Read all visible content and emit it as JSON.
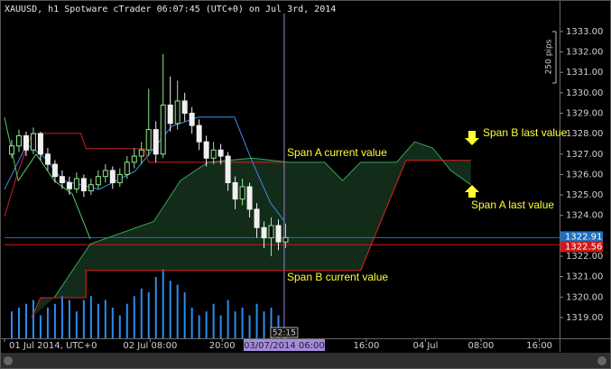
{
  "chart_data": {
    "type": "candlestick",
    "title": "XAUUSD, h1 Spotware cTrader 06:07:45 (UTC+0) on Jul 3rd, 2014",
    "x": [
      1,
      2,
      3,
      4,
      5,
      6,
      7,
      8,
      9,
      10,
      11,
      12,
      13,
      14,
      15,
      16,
      17,
      18,
      19,
      20,
      21,
      22,
      23,
      24,
      25,
      26,
      27,
      28,
      29,
      30,
      31,
      32,
      33,
      34,
      35,
      36,
      37,
      38,
      39
    ],
    "open": [
      1327.0,
      1327.4,
      1327.9,
      1327.2,
      1328.0,
      1327.0,
      1326.5,
      1325.9,
      1325.6,
      1325.3,
      1325.8,
      1325.2,
      1325.5,
      1325.9,
      1326.2,
      1325.6,
      1326.0,
      1326.6,
      1326.9,
      1327.2,
      1328.2,
      1327.0,
      1329.4,
      1328.5,
      1329.6,
      1329.0,
      1328.4,
      1327.6,
      1326.8,
      1327.2,
      1326.9,
      1325.6,
      1324.8,
      1325.4,
      1324.3,
      1323.4,
      1322.9,
      1323.5,
      1322.7
    ],
    "high": [
      1327.7,
      1328.2,
      1328.1,
      1328.3,
      1328.1,
      1327.3,
      1326.7,
      1326.2,
      1325.9,
      1326.1,
      1326.0,
      1325.8,
      1326.2,
      1326.5,
      1326.4,
      1326.3,
      1326.9,
      1327.3,
      1327.6,
      1330.2,
      1328.6,
      1331.9,
      1330.8,
      1330.6,
      1330.0,
      1329.3,
      1328.7,
      1327.9,
      1327.6,
      1327.5,
      1327.1,
      1325.9,
      1325.8,
      1325.6,
      1324.6,
      1323.7,
      1323.9,
      1323.8,
      1323.6
    ],
    "low": [
      1326.8,
      1327.1,
      1326.9,
      1327.0,
      1326.7,
      1326.2,
      1325.6,
      1325.3,
      1325.0,
      1325.1,
      1324.9,
      1325.0,
      1325.3,
      1325.6,
      1325.3,
      1325.4,
      1325.8,
      1326.3,
      1326.5,
      1326.9,
      1326.6,
      1326.8,
      1328.1,
      1328.2,
      1328.6,
      1328.0,
      1327.2,
      1326.4,
      1326.5,
      1326.5,
      1325.2,
      1324.3,
      1324.5,
      1323.9,
      1322.9,
      1322.4,
      1322.0,
      1322.3,
      1322.4
    ],
    "close": [
      1327.4,
      1327.9,
      1327.2,
      1328.0,
      1327.0,
      1326.5,
      1325.9,
      1325.6,
      1325.3,
      1325.8,
      1325.2,
      1325.5,
      1325.9,
      1326.2,
      1325.6,
      1326.0,
      1326.6,
      1326.9,
      1327.2,
      1328.2,
      1327.0,
      1329.4,
      1328.5,
      1329.6,
      1329.0,
      1328.4,
      1327.6,
      1326.8,
      1327.2,
      1326.9,
      1325.6,
      1324.8,
      1325.4,
      1324.3,
      1323.4,
      1322.9,
      1323.5,
      1322.7,
      1322.91
    ],
    "up_color": "#8fe88f",
    "down_color": "#f0f0f0",
    "volume": {
      "color": "#2a8cf0",
      "ylim": [
        0,
        100
      ],
      "values": [
        35,
        40,
        45,
        50,
        30,
        40,
        45,
        55,
        50,
        35,
        50,
        55,
        45,
        50,
        40,
        30,
        45,
        55,
        65,
        60,
        80,
        90,
        75,
        70,
        60,
        40,
        30,
        35,
        45,
        30,
        50,
        35,
        40,
        30,
        45,
        35,
        40,
        30,
        10
      ]
    },
    "lines": [
      {
        "color": "#3b8ee8",
        "x": [
          0,
          3.1,
          5.6,
          8.1,
          13.1,
          18.1,
          23.2,
          26.9,
          31.9,
          34.4,
          36.9,
          38.8
        ],
        "values": [
          1325.27,
          1327.48,
          1326.82,
          1325.71,
          1325.27,
          1326.16,
          1328.36,
          1328.81,
          1328.81,
          1326.6,
          1324.61,
          1323.73
        ]
      },
      {
        "color": "#c8222a",
        "x": [
          0,
          1.9,
          3.8,
          10.6,
          11.3,
          19.4,
          20.0,
          38.8
        ],
        "values": [
          1323.95,
          1326.16,
          1328.01,
          1328.01,
          1327.26,
          1327.26,
          1326.6,
          1326.6
        ]
      },
      {
        "color": "#3aa55a",
        "x": [
          6.9,
          11.9,
          20.7,
          24.4,
          28.2,
          34.4,
          39.4,
          44.4,
          46.9,
          49.4,
          54.4,
          56.9,
          59.4,
          61.9,
          64.7
        ],
        "values": [
          1319.97,
          1322.6,
          1323.7,
          1325.7,
          1326.6,
          1326.8,
          1326.6,
          1326.6,
          1325.7,
          1326.6,
          1326.6,
          1327.6,
          1327.3,
          1326.2,
          1325.5
        ]
      },
      {
        "color": "#e02020",
        "x": [
          3.75,
          5.0,
          11.3,
          11.3,
          49.4,
          55.7,
          64.7
        ],
        "values": [
          1319.0,
          1319.97,
          1319.97,
          1321.3,
          1321.3,
          1326.69,
          1326.69
        ]
      },
      {
        "color": "#55c865",
        "x": [
          0,
          1.9,
          4.4,
          6.9,
          9.4,
          11.9
        ],
        "values": [
          1328.8,
          1325.7,
          1327.0,
          1325.7,
          1325.05,
          1322.84
        ]
      }
    ],
    "cloud_color": "#1f4a2a",
    "levels": [
      {
        "value": 1322.91,
        "label": "1322.91",
        "color": "#1e6fbf"
      },
      {
        "value": 1322.56,
        "label": "1322.56",
        "color": "#d01818"
      }
    ],
    "cursor": {
      "value": 38.8,
      "label": "03/07/2014 06:00",
      "timer": "52:15"
    },
    "scale_label": "250 pips",
    "annotations": [
      "Span A current value",
      "Span B current value",
      "Span B last value",
      "Span A last value"
    ],
    "xlim": [
      0,
      77
    ],
    "ylim": [
      1317.98,
      1333.66
    ],
    "xticks": [
      {
        "value": 0,
        "label": "01 Jul 2014, UTC+0"
      },
      {
        "value": 20.2,
        "label": "02 Jul 08:00"
      },
      {
        "value": 30.2,
        "label": "20:00"
      },
      {
        "value": 50.2,
        "label": "16:00"
      },
      {
        "value": 58.4,
        "label": "04 Jul"
      },
      {
        "value": 66.1,
        "label": "08:00"
      },
      {
        "value": 74.2,
        "label": "16:00"
      }
    ],
    "yticks": [
      {
        "value": 1319,
        "label": "1319.00"
      },
      {
        "value": 1320,
        "label": "1320.00"
      },
      {
        "value": 1321,
        "label": "1321.00"
      },
      {
        "value": 1322,
        "label": "1322.00"
      },
      {
        "value": 1323,
        "label": "1323.00"
      },
      {
        "value": 1324,
        "label": "1324.00"
      },
      {
        "value": 1325,
        "label": "1325.00"
      },
      {
        "value": 1326,
        "label": "1326.00"
      },
      {
        "value": 1327,
        "label": "1327.00"
      },
      {
        "value": 1328,
        "label": "1328.00"
      },
      {
        "value": 1329,
        "label": "1329.00"
      },
      {
        "value": 1330,
        "label": "1330.00"
      },
      {
        "value": 1331,
        "label": "1331.00"
      },
      {
        "value": 1332,
        "label": "1332.00"
      },
      {
        "value": 1333,
        "label": "1333.00"
      }
    ]
  }
}
